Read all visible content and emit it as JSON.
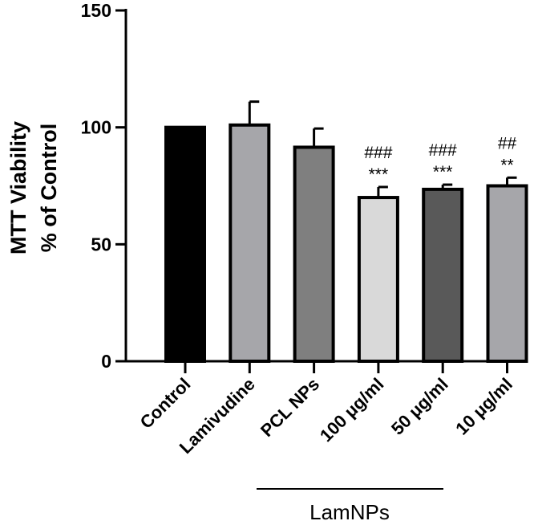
{
  "chart_data": {
    "type": "bar",
    "ylabel_lines": [
      "MTT Viability",
      "% of Control"
    ],
    "xlabel": "",
    "ylim": [
      0,
      150
    ],
    "yticks": [
      0,
      50,
      100,
      150
    ],
    "grid": false,
    "categories": [
      "Control",
      "Lamivudine",
      "PCL NPs",
      "100 μg/ml",
      "50 μg/ml",
      "10 μg/ml"
    ],
    "values": [
      100,
      101,
      91.5,
      70,
      73.5,
      75
    ],
    "errors": [
      0,
      10,
      8,
      4.5,
      2,
      3.5
    ],
    "bar_colors": [
      "#000000",
      "#a6a6aa",
      "#7f7f7f",
      "#d9d9d9",
      "#595959",
      "#a6a6aa"
    ],
    "significance": [
      {
        "category": "100 μg/ml",
        "top": "###",
        "bottom": "***"
      },
      {
        "category": "50 μg/ml",
        "top": "###",
        "bottom": "***"
      },
      {
        "category": "10 μg/ml",
        "top": "##",
        "bottom": "**"
      }
    ],
    "group_label": "LamNPs"
  }
}
